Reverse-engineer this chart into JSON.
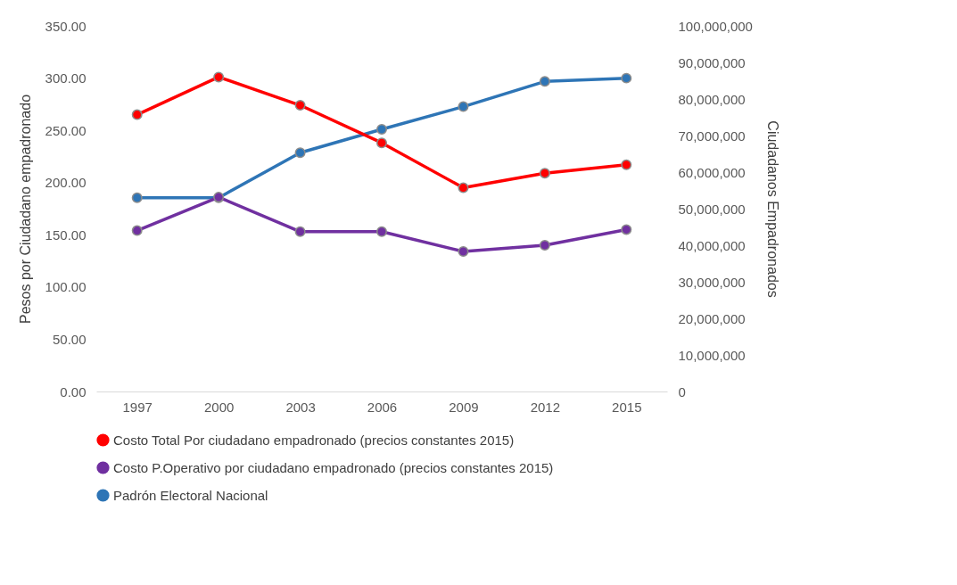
{
  "chart_data": {
    "type": "line",
    "categories": [
      "1997",
      "2000",
      "2003",
      "2006",
      "2009",
      "2012",
      "2015"
    ],
    "ylabel": "Pesos por Ciudadano empadronado",
    "y2label": "Ciudadanos Empadronados",
    "ylim": [
      0,
      350
    ],
    "yticks": [
      {
        "value": 0,
        "label": "0.00"
      },
      {
        "value": 50,
        "label": "50.00"
      },
      {
        "value": 100,
        "label": "100.00"
      },
      {
        "value": 150,
        "label": "150.00"
      },
      {
        "value": 200,
        "label": "200.00"
      },
      {
        "value": 250,
        "label": "250.00"
      },
      {
        "value": 300,
        "label": "300.00"
      },
      {
        "value": 350,
        "label": "350.00"
      }
    ],
    "y2lim": [
      0,
      100000000
    ],
    "y2ticks": [
      0,
      {
        "value": 10000000,
        "label": "10,000,000"
      },
      {
        "value": 20000000,
        "label": "20,000,000"
      },
      {
        "value": 30000000,
        "label": "30,000,000"
      },
      {
        "value": 40000000,
        "label": "40,000,000"
      },
      {
        "value": 50000000,
        "label": "50,000,000"
      },
      {
        "value": 60000000,
        "label": "60,000,000"
      },
      {
        "value": 70000000,
        "label": "70,000,000"
      },
      {
        "value": 80000000,
        "label": "80,000,000"
      },
      {
        "value": 90000000,
        "label": "90,000,000"
      },
      {
        "value": 100000000,
        "label": "100,000,000"
      }
    ],
    "series": [
      {
        "name": "Costo Total Por ciudadano empadronado (precios constantes 2015)",
        "color": "#ff0000",
        "values": [
          265,
          301,
          274,
          238,
          195,
          209,
          217
        ]
      },
      {
        "name": "Costo P.Operativo por ciudadano empadronado (precios constantes 2015)",
        "color": "#7030a0",
        "values": [
          154,
          186,
          153,
          153,
          134,
          140,
          155
        ]
      },
      {
        "name": "Padrón Electoral Nacional",
        "color": "#2e75b6",
        "axis": "y2",
        "values": [
          53000000,
          53000000,
          65300000,
          71700000,
          77900000,
          84800000,
          85700000
        ]
      }
    ],
    "marker": "circle",
    "grid": false,
    "legend": "bottom"
  }
}
